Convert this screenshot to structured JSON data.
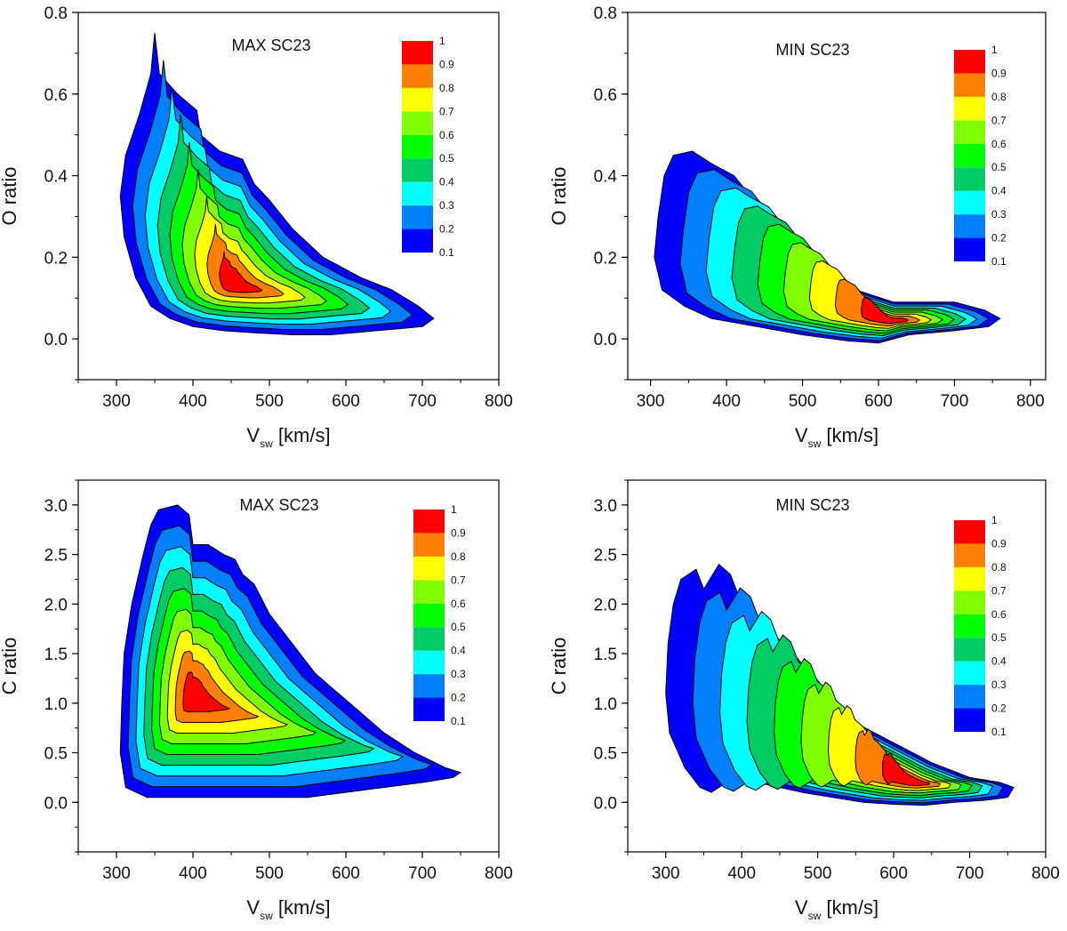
{
  "levels": [
    "0.1",
    "0.2",
    "0.3",
    "0.4",
    "0.5",
    "0.6",
    "0.7",
    "0.8",
    "0.9",
    "1"
  ],
  "level_values": [
    0.1,
    0.2,
    0.3,
    0.4,
    0.5,
    0.6,
    0.7,
    0.8,
    0.9,
    1.0
  ],
  "colors": [
    "#0000ff",
    "#0080ff",
    "#00ffff",
    "#00cc66",
    "#00ff00",
    "#80ff00",
    "#ffff00",
    "#ff8000",
    "#ff0000"
  ],
  "chart_data": [
    {
      "type": "contour",
      "title": "MAX SC23",
      "xlabel_main": "V",
      "xlabel_sub": "sw",
      "xlabel_unit": " [km/s]",
      "ylabel": "O ratio",
      "xlim": [
        250,
        800
      ],
      "ylim": [
        -0.1,
        0.8
      ],
      "xticks": [
        300,
        400,
        500,
        600,
        700,
        800
      ],
      "xtick_labels": [
        "300",
        "400",
        "500",
        "600",
        "700",
        "800"
      ],
      "yticks": [
        0.0,
        0.2,
        0.4,
        0.6,
        0.8
      ],
      "ytick_labels": [
        "0.0",
        "0.2",
        "0.4",
        "0.6",
        "0.8"
      ],
      "yminor": 0.1,
      "peak": {
        "vsw": 455,
        "ratio": 0.13
      },
      "outer_contour": [
        [
          350,
          0.75
        ],
        [
          356,
          0.65
        ],
        [
          380,
          0.6
        ],
        [
          405,
          0.56
        ],
        [
          410,
          0.5
        ],
        [
          435,
          0.46
        ],
        [
          450,
          0.45
        ],
        [
          465,
          0.44
        ],
        [
          480,
          0.38
        ],
        [
          500,
          0.34
        ],
        [
          530,
          0.27
        ],
        [
          570,
          0.2
        ],
        [
          620,
          0.15
        ],
        [
          660,
          0.12
        ],
        [
          695,
          0.08
        ],
        [
          715,
          0.05
        ],
        [
          700,
          0.03
        ],
        [
          670,
          0.025
        ],
        [
          640,
          0.02
        ],
        [
          610,
          0.015
        ],
        [
          580,
          0.01
        ],
        [
          530,
          0.01
        ],
        [
          480,
          0.015
        ],
        [
          440,
          0.02
        ],
        [
          400,
          0.03
        ],
        [
          370,
          0.05
        ],
        [
          345,
          0.08
        ],
        [
          325,
          0.15
        ],
        [
          310,
          0.25
        ],
        [
          305,
          0.35
        ],
        [
          312,
          0.45
        ],
        [
          330,
          0.55
        ],
        [
          345,
          0.65
        ]
      ]
    },
    {
      "type": "contour",
      "title": "MIN SC23",
      "xlabel_main": "V",
      "xlabel_sub": "sw",
      "xlabel_unit": " [km/s]",
      "ylabel": "O ratio",
      "xlim": [
        270,
        820
      ],
      "ylim": [
        -0.1,
        0.8
      ],
      "xticks": [
        300,
        400,
        500,
        600,
        700,
        800
      ],
      "xtick_labels": [
        "300",
        "400",
        "500",
        "600",
        "700",
        "800"
      ],
      "yticks": [
        0.0,
        0.2,
        0.4,
        0.6,
        0.8
      ],
      "ytick_labels": [
        "0.0",
        "0.2",
        "0.4",
        "0.6",
        "0.8"
      ],
      "yminor": 0.1,
      "peak": {
        "vsw": 620,
        "ratio": 0.045
      },
      "outer_contour": [
        [
          330,
          0.45
        ],
        [
          355,
          0.46
        ],
        [
          380,
          0.43
        ],
        [
          410,
          0.4
        ],
        [
          440,
          0.33
        ],
        [
          480,
          0.25
        ],
        [
          520,
          0.18
        ],
        [
          570,
          0.12
        ],
        [
          620,
          0.09
        ],
        [
          700,
          0.09
        ],
        [
          740,
          0.07
        ],
        [
          760,
          0.05
        ],
        [
          745,
          0.03
        ],
        [
          700,
          0.02
        ],
        [
          640,
          0.01
        ],
        [
          600,
          -0.01
        ],
        [
          560,
          -0.005
        ],
        [
          500,
          0.01
        ],
        [
          440,
          0.03
        ],
        [
          380,
          0.05
        ],
        [
          345,
          0.08
        ],
        [
          315,
          0.12
        ],
        [
          305,
          0.2
        ],
        [
          310,
          0.3
        ],
        [
          318,
          0.4
        ]
      ]
    },
    {
      "type": "contour",
      "title": "MAX SC23",
      "xlabel_main": "V",
      "xlabel_sub": "sw",
      "xlabel_unit": " [km/s]",
      "ylabel": "C ratio",
      "xlim": [
        250,
        800
      ],
      "ylim": [
        -0.5,
        3.25
      ],
      "xticks": [
        300,
        400,
        500,
        600,
        700,
        800
      ],
      "xtick_labels": [
        "300",
        "400",
        "500",
        "600",
        "700",
        "800"
      ],
      "yticks": [
        0.0,
        0.5,
        1.0,
        1.5,
        2.0,
        2.5,
        3.0
      ],
      "ytick_labels": [
        "0.0",
        "0.5",
        "1.0",
        "1.5",
        "2.0",
        "2.5",
        "3.0"
      ],
      "yminor": 0.25,
      "peak": {
        "vsw": 400,
        "ratio": 1.05
      },
      "outer_contour": [
        [
          355,
          2.95
        ],
        [
          380,
          3.0
        ],
        [
          395,
          2.9
        ],
        [
          400,
          2.6
        ],
        [
          420,
          2.6
        ],
        [
          440,
          2.5
        ],
        [
          455,
          2.45
        ],
        [
          465,
          2.3
        ],
        [
          480,
          2.2
        ],
        [
          500,
          1.9
        ],
        [
          530,
          1.6
        ],
        [
          560,
          1.3
        ],
        [
          590,
          1.1
        ],
        [
          620,
          0.9
        ],
        [
          650,
          0.7
        ],
        [
          690,
          0.5
        ],
        [
          730,
          0.35
        ],
        [
          750,
          0.3
        ],
        [
          740,
          0.25
        ],
        [
          700,
          0.2
        ],
        [
          650,
          0.15
        ],
        [
          600,
          0.1
        ],
        [
          550,
          0.05
        ],
        [
          500,
          0.05
        ],
        [
          460,
          0.05
        ],
        [
          420,
          0.05
        ],
        [
          380,
          0.05
        ],
        [
          340,
          0.05
        ],
        [
          312,
          0.15
        ],
        [
          305,
          0.5
        ],
        [
          307,
          1.0
        ],
        [
          310,
          1.5
        ],
        [
          320,
          2.0
        ],
        [
          335,
          2.5
        ],
        [
          345,
          2.8
        ]
      ]
    },
    {
      "type": "contour",
      "title": "MIN SC23",
      "xlabel_main": "V",
      "xlabel_sub": "sw",
      "xlabel_unit": " [km/s]",
      "ylabel": "C ratio",
      "xlim": [
        250,
        800
      ],
      "ylim": [
        -0.5,
        3.25
      ],
      "xticks": [
        300,
        400,
        500,
        600,
        700,
        800
      ],
      "xtick_labels": [
        "300",
        "400",
        "500",
        "600",
        "700",
        "800"
      ],
      "yticks": [
        0.0,
        0.5,
        1.0,
        1.5,
        2.0,
        2.5,
        3.0
      ],
      "ytick_labels": [
        "0.0",
        "0.5",
        "1.0",
        "1.5",
        "2.0",
        "2.5",
        "3.0"
      ],
      "yminor": 0.25,
      "peak": {
        "vsw": 630,
        "ratio": 0.2
      },
      "outer_contour": [
        [
          320,
          2.25
        ],
        [
          340,
          2.35
        ],
        [
          350,
          2.15
        ],
        [
          370,
          2.4
        ],
        [
          385,
          2.3
        ],
        [
          400,
          2.0
        ],
        [
          430,
          1.8
        ],
        [
          460,
          1.5
        ],
        [
          500,
          1.1
        ],
        [
          550,
          0.8
        ],
        [
          600,
          0.6
        ],
        [
          650,
          0.4
        ],
        [
          700,
          0.25
        ],
        [
          740,
          0.2
        ],
        [
          758,
          0.15
        ],
        [
          750,
          0.05
        ],
        [
          720,
          0.02
        ],
        [
          680,
          0.0
        ],
        [
          640,
          -0.03
        ],
        [
          600,
          -0.02
        ],
        [
          560,
          0.0
        ],
        [
          520,
          0.05
        ],
        [
          480,
          0.1
        ],
        [
          450,
          0.15
        ],
        [
          420,
          0.2
        ],
        [
          390,
          0.25
        ],
        [
          360,
          0.1
        ],
        [
          345,
          0.15
        ],
        [
          325,
          0.35
        ],
        [
          305,
          0.7
        ],
        [
          300,
          1.1
        ],
        [
          303,
          1.6
        ],
        [
          310,
          2.0
        ]
      ]
    }
  ]
}
